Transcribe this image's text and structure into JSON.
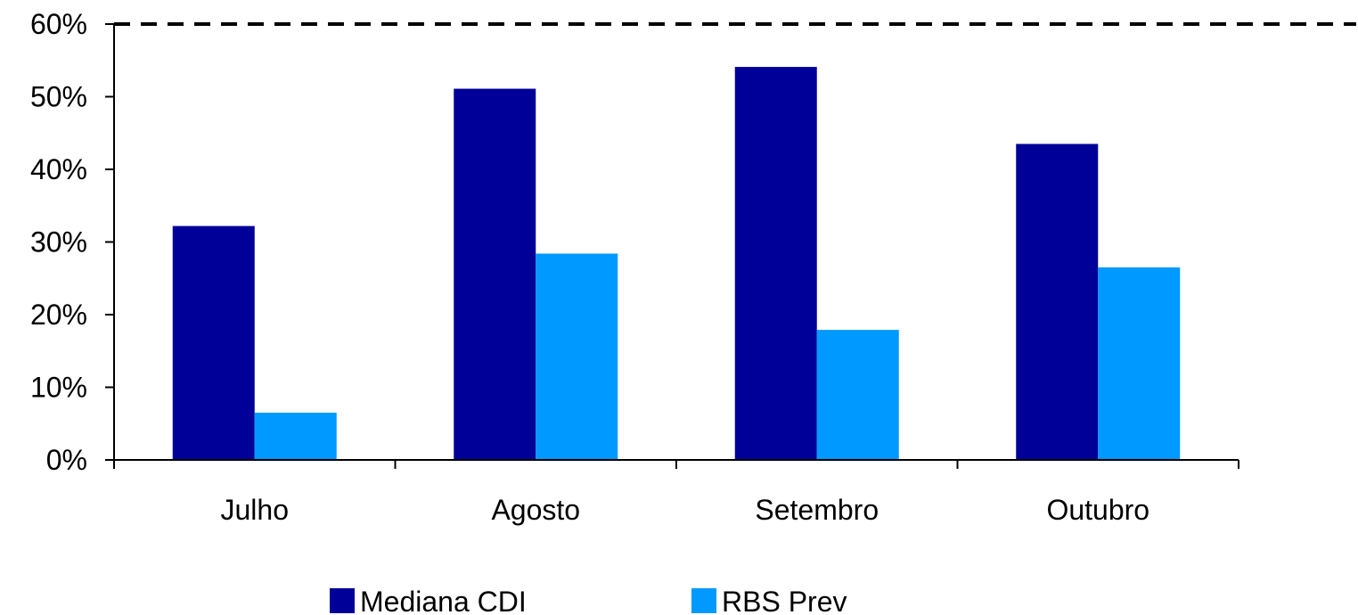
{
  "chart_data": {
    "type": "bar",
    "title": "",
    "xlabel": "",
    "ylabel": "",
    "categories": [
      "Julho",
      "Agosto",
      "Setembro",
      "Outubro"
    ],
    "series": [
      {
        "name": "Mediana CDI",
        "color": "#000099",
        "values": [
          32.2,
          51.1,
          54.1,
          43.5
        ]
      },
      {
        "name": "RBS Prev",
        "color": "#0099ff",
        "values": [
          6.5,
          28.4,
          17.9,
          26.5
        ]
      }
    ],
    "ylim": [
      0,
      60
    ],
    "yticks": [
      0,
      10,
      20,
      30,
      40,
      50,
      60
    ],
    "ytick_labels": [
      "0%",
      "10%",
      "20%",
      "30%",
      "40%",
      "50%",
      "60%"
    ],
    "reference_line": {
      "value": 60,
      "style": "dashed",
      "color": "#000000"
    },
    "grid": false,
    "legend_position": "bottom"
  }
}
